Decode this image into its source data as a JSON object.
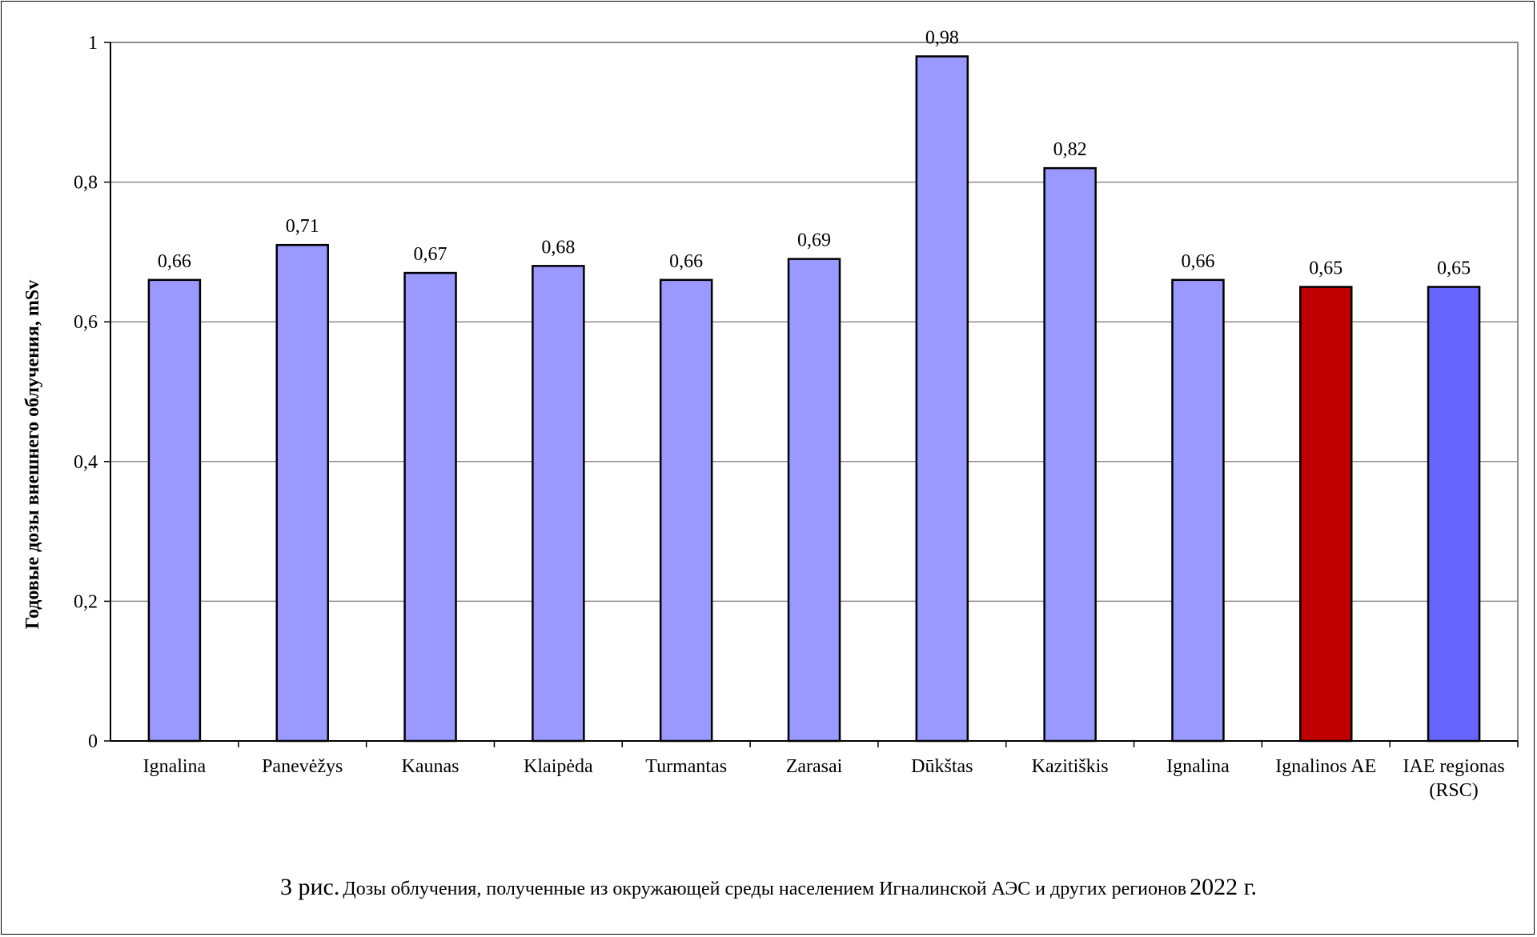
{
  "chart_data": {
    "type": "bar",
    "ylabel": "Годовые дозы внешнего облучения, mSv",
    "xlabel": "",
    "ylim": [
      0,
      1
    ],
    "yticks": [
      "0",
      "0,2",
      "0,4",
      "0,6",
      "0,8",
      "1"
    ],
    "ytick_values": [
      0,
      0.2,
      0.4,
      0.6,
      0.8,
      1
    ],
    "grid": true,
    "legend": "none",
    "categories": [
      [
        "Ignalina"
      ],
      [
        "Panevėžys"
      ],
      [
        "Kaunas"
      ],
      [
        "Klaipėda"
      ],
      [
        "Turmantas"
      ],
      [
        "Zarasai"
      ],
      [
        "Dūkštas"
      ],
      [
        "Kazitiškis"
      ],
      [
        "Ignalina"
      ],
      [
        "Ignalinos AE"
      ],
      [
        "IAE regionas",
        "(RSC)"
      ]
    ],
    "values": [
      0.66,
      0.71,
      0.67,
      0.68,
      0.66,
      0.69,
      0.98,
      0.82,
      0.66,
      0.65,
      0.65
    ],
    "value_labels": [
      "0,66",
      "0,71",
      "0,67",
      "0,68",
      "0,66",
      "0,69",
      "0,98",
      "0,82",
      "0,66",
      "0,65",
      "0,65"
    ],
    "colors": [
      "#9999ff",
      "#9999ff",
      "#9999ff",
      "#9999ff",
      "#9999ff",
      "#9999ff",
      "#9999ff",
      "#9999ff",
      "#9999ff",
      "#c00000",
      "#6666ff"
    ],
    "bar_outline": "#000000",
    "grid_color": "#8c8c8c"
  },
  "caption": {
    "lead": "3 рис.",
    "text": "Дозы облучения, полученные из окружающей среды населением Игналинской АЭС и других регионов",
    "year": "2022 г."
  }
}
